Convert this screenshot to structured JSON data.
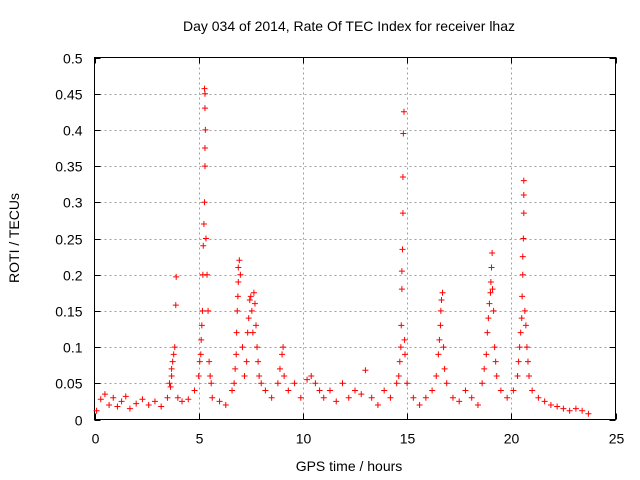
{
  "chart_data": {
    "type": "scatter",
    "title": "Day 034 of 2014, Rate Of TEC Index for receiver lhaz",
    "xlabel": "GPS time / hours",
    "ylabel": "ROTI / TECUs",
    "xlim": [
      0,
      25
    ],
    "ylim": [
      0,
      0.5
    ],
    "x_ticks": [
      "0",
      "5",
      "10",
      "15",
      "20",
      "25"
    ],
    "y_ticks": [
      "0",
      "0.05",
      "0.1",
      "0.15",
      "0.2",
      "0.25",
      "0.3",
      "0.35",
      "0.4",
      "0.45",
      "0.5"
    ],
    "grid": true,
    "marker": "+",
    "color": "#ff0000",
    "series": [
      {
        "name": "ROTI",
        "points": [
          [
            0.1,
            0.012
          ],
          [
            0.3,
            0.028
          ],
          [
            0.5,
            0.035
          ],
          [
            0.7,
            0.02
          ],
          [
            0.9,
            0.03
          ],
          [
            1.1,
            0.018
          ],
          [
            1.3,
            0.025
          ],
          [
            1.5,
            0.032
          ],
          [
            1.7,
            0.015
          ],
          [
            2.0,
            0.022
          ],
          [
            2.3,
            0.028
          ],
          [
            2.6,
            0.02
          ],
          [
            2.9,
            0.025
          ],
          [
            3.2,
            0.018
          ],
          [
            3.5,
            0.03
          ],
          [
            3.7,
            0.06
          ],
          [
            3.75,
            0.08
          ],
          [
            3.8,
            0.09
          ],
          [
            3.85,
            0.1
          ],
          [
            3.9,
            0.158
          ],
          [
            3.92,
            0.197
          ],
          [
            3.7,
            0.07
          ],
          [
            3.65,
            0.045
          ],
          [
            3.6,
            0.05
          ],
          [
            4.0,
            0.03
          ],
          [
            4.2,
            0.025
          ],
          [
            4.5,
            0.028
          ],
          [
            4.8,
            0.04
          ],
          [
            5.0,
            0.06
          ],
          [
            5.05,
            0.08
          ],
          [
            5.1,
            0.09
          ],
          [
            5.12,
            0.11
          ],
          [
            5.15,
            0.13
          ],
          [
            5.18,
            0.15
          ],
          [
            5.2,
            0.2
          ],
          [
            5.22,
            0.24
          ],
          [
            5.25,
            0.27
          ],
          [
            5.28,
            0.3
          ],
          [
            5.3,
            0.35
          ],
          [
            5.3,
            0.375
          ],
          [
            5.32,
            0.4
          ],
          [
            5.3,
            0.43
          ],
          [
            5.3,
            0.45
          ],
          [
            5.28,
            0.457
          ],
          [
            5.35,
            0.25
          ],
          [
            5.4,
            0.2
          ],
          [
            5.45,
            0.15
          ],
          [
            5.5,
            0.08
          ],
          [
            5.55,
            0.06
          ],
          [
            5.6,
            0.05
          ],
          [
            5.65,
            0.03
          ],
          [
            6.0,
            0.025
          ],
          [
            6.3,
            0.02
          ],
          [
            6.6,
            0.04
          ],
          [
            6.7,
            0.05
          ],
          [
            6.75,
            0.07
          ],
          [
            6.8,
            0.09
          ],
          [
            6.82,
            0.12
          ],
          [
            6.85,
            0.15
          ],
          [
            6.88,
            0.17
          ],
          [
            6.9,
            0.19
          ],
          [
            6.9,
            0.21
          ],
          [
            6.95,
            0.22
          ],
          [
            7.0,
            0.2
          ],
          [
            7.1,
            0.1
          ],
          [
            7.2,
            0.06
          ],
          [
            7.3,
            0.08
          ],
          [
            7.35,
            0.12
          ],
          [
            7.4,
            0.14
          ],
          [
            7.45,
            0.165
          ],
          [
            7.5,
            0.17
          ],
          [
            7.55,
            0.15
          ],
          [
            7.6,
            0.12
          ],
          [
            7.65,
            0.175
          ],
          [
            7.7,
            0.16
          ],
          [
            7.75,
            0.13
          ],
          [
            7.8,
            0.1
          ],
          [
            7.85,
            0.08
          ],
          [
            7.9,
            0.06
          ],
          [
            8.0,
            0.05
          ],
          [
            8.2,
            0.04
          ],
          [
            8.5,
            0.03
          ],
          [
            8.8,
            0.05
          ],
          [
            8.9,
            0.07
          ],
          [
            9.0,
            0.09
          ],
          [
            9.05,
            0.1
          ],
          [
            9.1,
            0.06
          ],
          [
            9.3,
            0.04
          ],
          [
            9.6,
            0.05
          ],
          [
            9.9,
            0.03
          ],
          [
            10.2,
            0.055
          ],
          [
            10.4,
            0.06
          ],
          [
            10.6,
            0.05
          ],
          [
            10.8,
            0.04
          ],
          [
            11.0,
            0.03
          ],
          [
            11.3,
            0.04
          ],
          [
            11.6,
            0.025
          ],
          [
            11.9,
            0.05
          ],
          [
            12.2,
            0.03
          ],
          [
            12.5,
            0.04
          ],
          [
            12.8,
            0.035
          ],
          [
            13.0,
            0.068
          ],
          [
            13.3,
            0.03
          ],
          [
            13.6,
            0.02
          ],
          [
            13.9,
            0.04
          ],
          [
            14.2,
            0.03
          ],
          [
            14.5,
            0.05
          ],
          [
            14.6,
            0.06
          ],
          [
            14.65,
            0.08
          ],
          [
            14.7,
            0.1
          ],
          [
            14.72,
            0.13
          ],
          [
            14.75,
            0.18
          ],
          [
            14.75,
            0.205
          ],
          [
            14.78,
            0.235
          ],
          [
            14.8,
            0.285
          ],
          [
            14.8,
            0.335
          ],
          [
            14.82,
            0.395
          ],
          [
            14.85,
            0.425
          ],
          [
            14.88,
            0.11
          ],
          [
            14.9,
            0.09
          ],
          [
            15.0,
            0.05
          ],
          [
            15.3,
            0.03
          ],
          [
            15.6,
            0.02
          ],
          [
            15.9,
            0.03
          ],
          [
            16.2,
            0.04
          ],
          [
            16.4,
            0.06
          ],
          [
            16.5,
            0.09
          ],
          [
            16.55,
            0.11
          ],
          [
            16.6,
            0.13
          ],
          [
            16.62,
            0.15
          ],
          [
            16.65,
            0.165
          ],
          [
            16.7,
            0.175
          ],
          [
            16.75,
            0.1
          ],
          [
            16.8,
            0.07
          ],
          [
            16.9,
            0.05
          ],
          [
            17.2,
            0.03
          ],
          [
            17.5,
            0.025
          ],
          [
            17.8,
            0.04
          ],
          [
            18.1,
            0.03
          ],
          [
            18.4,
            0.02
          ],
          [
            18.6,
            0.05
          ],
          [
            18.7,
            0.07
          ],
          [
            18.8,
            0.09
          ],
          [
            18.85,
            0.12
          ],
          [
            18.9,
            0.14
          ],
          [
            18.95,
            0.16
          ],
          [
            19.0,
            0.175
          ],
          [
            19.02,
            0.19
          ],
          [
            19.05,
            0.21
          ],
          [
            19.08,
            0.23
          ],
          [
            19.1,
            0.18
          ],
          [
            19.15,
            0.15
          ],
          [
            19.2,
            0.1
          ],
          [
            19.25,
            0.08
          ],
          [
            19.3,
            0.06
          ],
          [
            19.5,
            0.04
          ],
          [
            19.8,
            0.03
          ],
          [
            20.1,
            0.04
          ],
          [
            20.3,
            0.06
          ],
          [
            20.35,
            0.08
          ],
          [
            20.4,
            0.1
          ],
          [
            20.45,
            0.12
          ],
          [
            20.5,
            0.14
          ],
          [
            20.52,
            0.17
          ],
          [
            20.55,
            0.2
          ],
          [
            20.55,
            0.225
          ],
          [
            20.58,
            0.25
          ],
          [
            20.6,
            0.285
          ],
          [
            20.6,
            0.31
          ],
          [
            20.6,
            0.33
          ],
          [
            20.65,
            0.15
          ],
          [
            20.7,
            0.13
          ],
          [
            20.75,
            0.1
          ],
          [
            20.8,
            0.08
          ],
          [
            20.85,
            0.06
          ],
          [
            21.0,
            0.04
          ],
          [
            21.3,
            0.03
          ],
          [
            21.6,
            0.025
          ],
          [
            21.9,
            0.02
          ],
          [
            22.2,
            0.018
          ],
          [
            22.5,
            0.015
          ],
          [
            22.8,
            0.012
          ],
          [
            23.1,
            0.015
          ],
          [
            23.4,
            0.012
          ],
          [
            23.7,
            0.008
          ]
        ]
      }
    ]
  }
}
